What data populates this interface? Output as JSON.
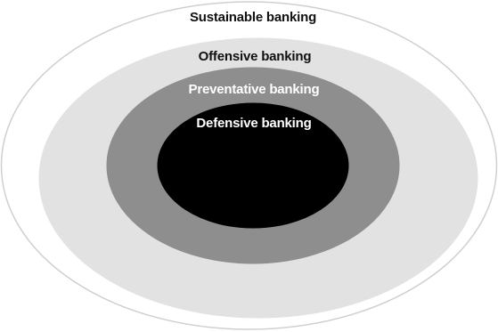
{
  "diagram": {
    "levels": [
      {
        "label": "Sustainable banking",
        "fill": "#ffffff",
        "stroke": "#cfcfcf",
        "text_color": "#111111"
      },
      {
        "label": "Offensive banking",
        "fill": "#e2e2e2",
        "stroke": "#e2e2e2",
        "text_color": "#111111"
      },
      {
        "label": "Preventative banking",
        "fill": "#8e8e8e",
        "stroke": "#8e8e8e",
        "text_color": "#ffffff"
      },
      {
        "label": "Defensive banking",
        "fill": "#000000",
        "stroke": "#000000",
        "text_color": "#ffffff"
      }
    ]
  }
}
